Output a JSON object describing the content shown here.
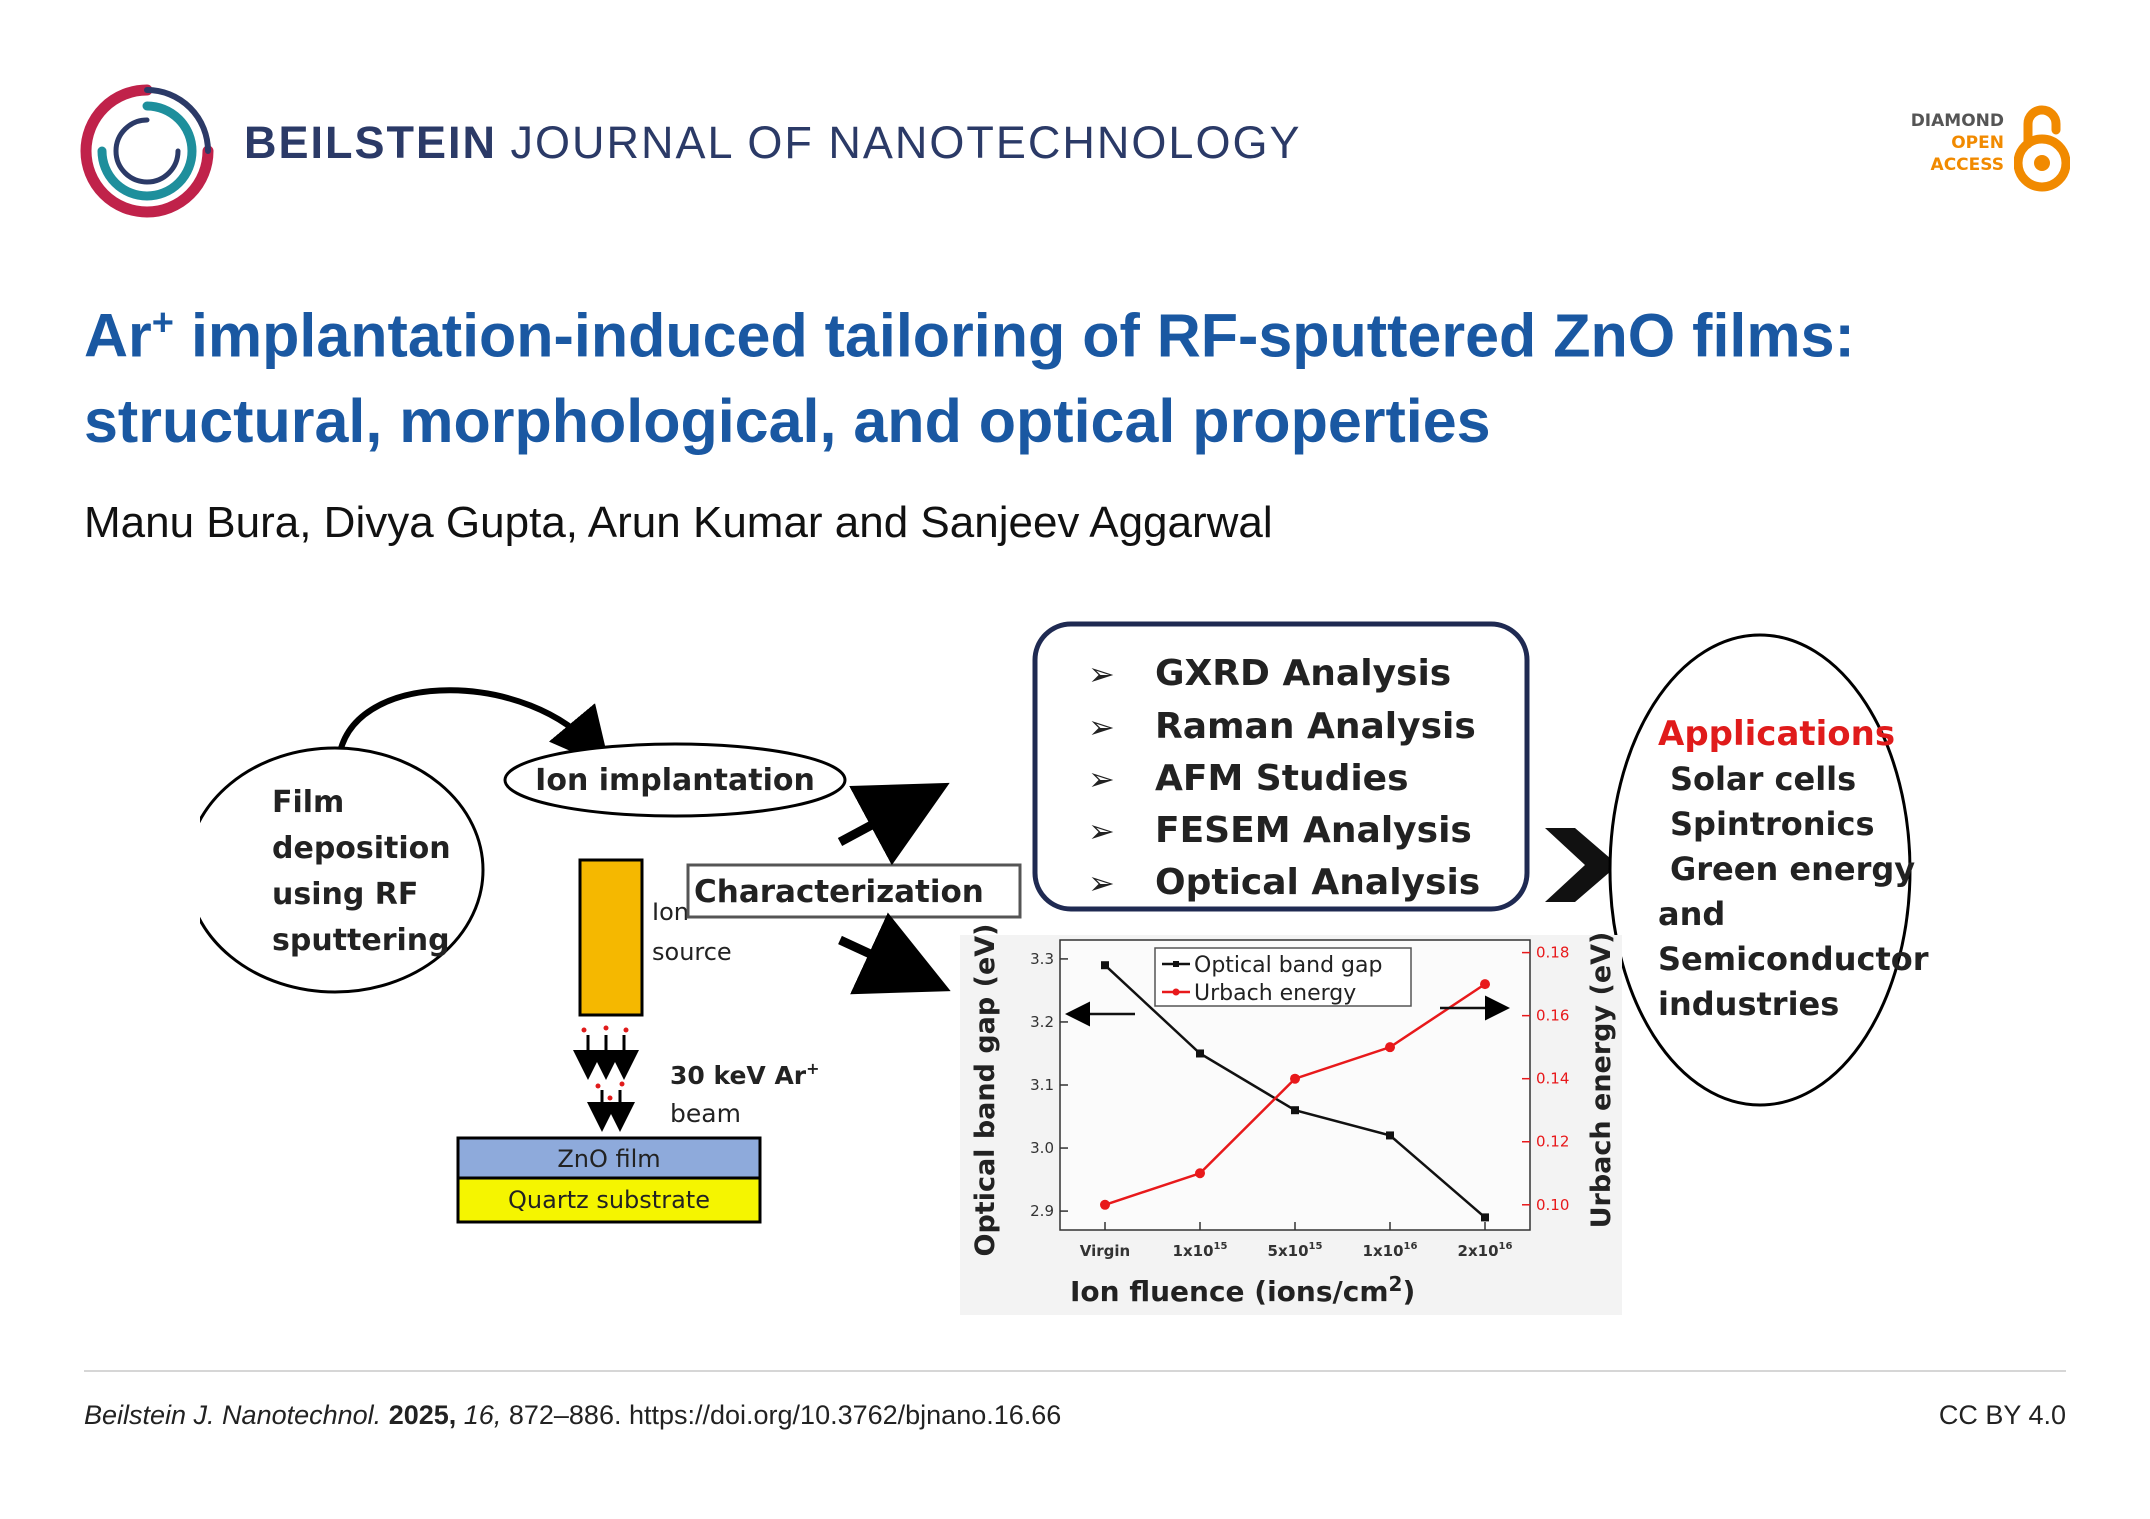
{
  "header": {
    "journal_bold": "BEILSTEIN",
    "journal_rest": "JOURNAL OF NANOTECHNOLOGY",
    "badge": {
      "line1": "DIAMOND",
      "line2": "OPEN",
      "line3": "ACCESS"
    },
    "colors": {
      "journal": "#2b3a67",
      "badge_orange": "#f18a00",
      "logo_red": "#c0224a",
      "logo_teal": "#1e8f9c",
      "logo_navy": "#2b3a67"
    }
  },
  "article": {
    "title_pre": "Ar",
    "title_sup": "+",
    "title_main": " implantation-induced tailoring of RF-sputtered ZnO films: structural, morphological, and optical properties",
    "authors": "Manu Bura, Divya Gupta, Arun Kumar and Sanjeev Aggarwal",
    "title_color": "#1a58a2"
  },
  "figure": {
    "film_deposition": [
      "Film",
      "deposition",
      "using RF",
      "sputtering"
    ],
    "ion_implantation": "Ion implantation",
    "ion_source": [
      "Ion",
      "source"
    ],
    "beam": [
      "30 keV Ar",
      "beam"
    ],
    "beam_sup": "+",
    "zno_film": "ZnO film",
    "quartz_substrate": "Quartz substrate",
    "characterization": "Characterization",
    "analysis_items": [
      "GXRD Analysis",
      "Raman Analysis",
      "AFM Studies",
      "FESEM Analysis",
      "Optical Analysis"
    ],
    "bullet_glyph": "➢",
    "applications_title": "Applications",
    "applications": [
      "Solar cells",
      "Spintronics",
      "Green energy",
      "and",
      "Semiconductor",
      "industries"
    ],
    "colors": {
      "ion_source": "#f5b800",
      "zno": "#8eaadb",
      "quartz": "#f5f500",
      "applications_title": "#e01b1b"
    }
  },
  "chart_data": {
    "type": "line",
    "categories": [
      "Virgin",
      "1x10",
      "5x10",
      "1x10",
      "2x10"
    ],
    "category_exponents": [
      "",
      "15",
      "15",
      "16",
      "16"
    ],
    "series": [
      {
        "name": "Optical band gap",
        "axis": "left",
        "color": "#111111",
        "values": [
          3.29,
          3.15,
          3.06,
          3.02,
          2.89
        ]
      },
      {
        "name": "Urbach energy",
        "axis": "right",
        "color": "#e8191b",
        "values": [
          0.1,
          0.11,
          0.14,
          0.15,
          0.17
        ]
      }
    ],
    "xlabel": "Ion fluence (ions/cm",
    "xlabel_sup": "2",
    "xlabel_end": ")",
    "ylabel_left": "Optical band gap (eV)",
    "ylabel_right": "Urbach energy (eV)",
    "yticks_left": [
      "2.9",
      "3.0",
      "3.1",
      "3.2",
      "3.3"
    ],
    "yticks_right": [
      "0.10",
      "0.12",
      "0.14",
      "0.16",
      "0.18"
    ],
    "ylim_left": [
      2.87,
      3.33
    ],
    "ylim_right": [
      0.092,
      0.184
    ],
    "legend_position": "top-center"
  },
  "footer": {
    "journal_abbrev": "Beilstein J. Nanotechnol.",
    "year": "2025,",
    "volume": "16,",
    "pages_doi": "872–886. https://doi.org/10.3762/bjnano.16.66",
    "license": "CC BY 4.0"
  }
}
